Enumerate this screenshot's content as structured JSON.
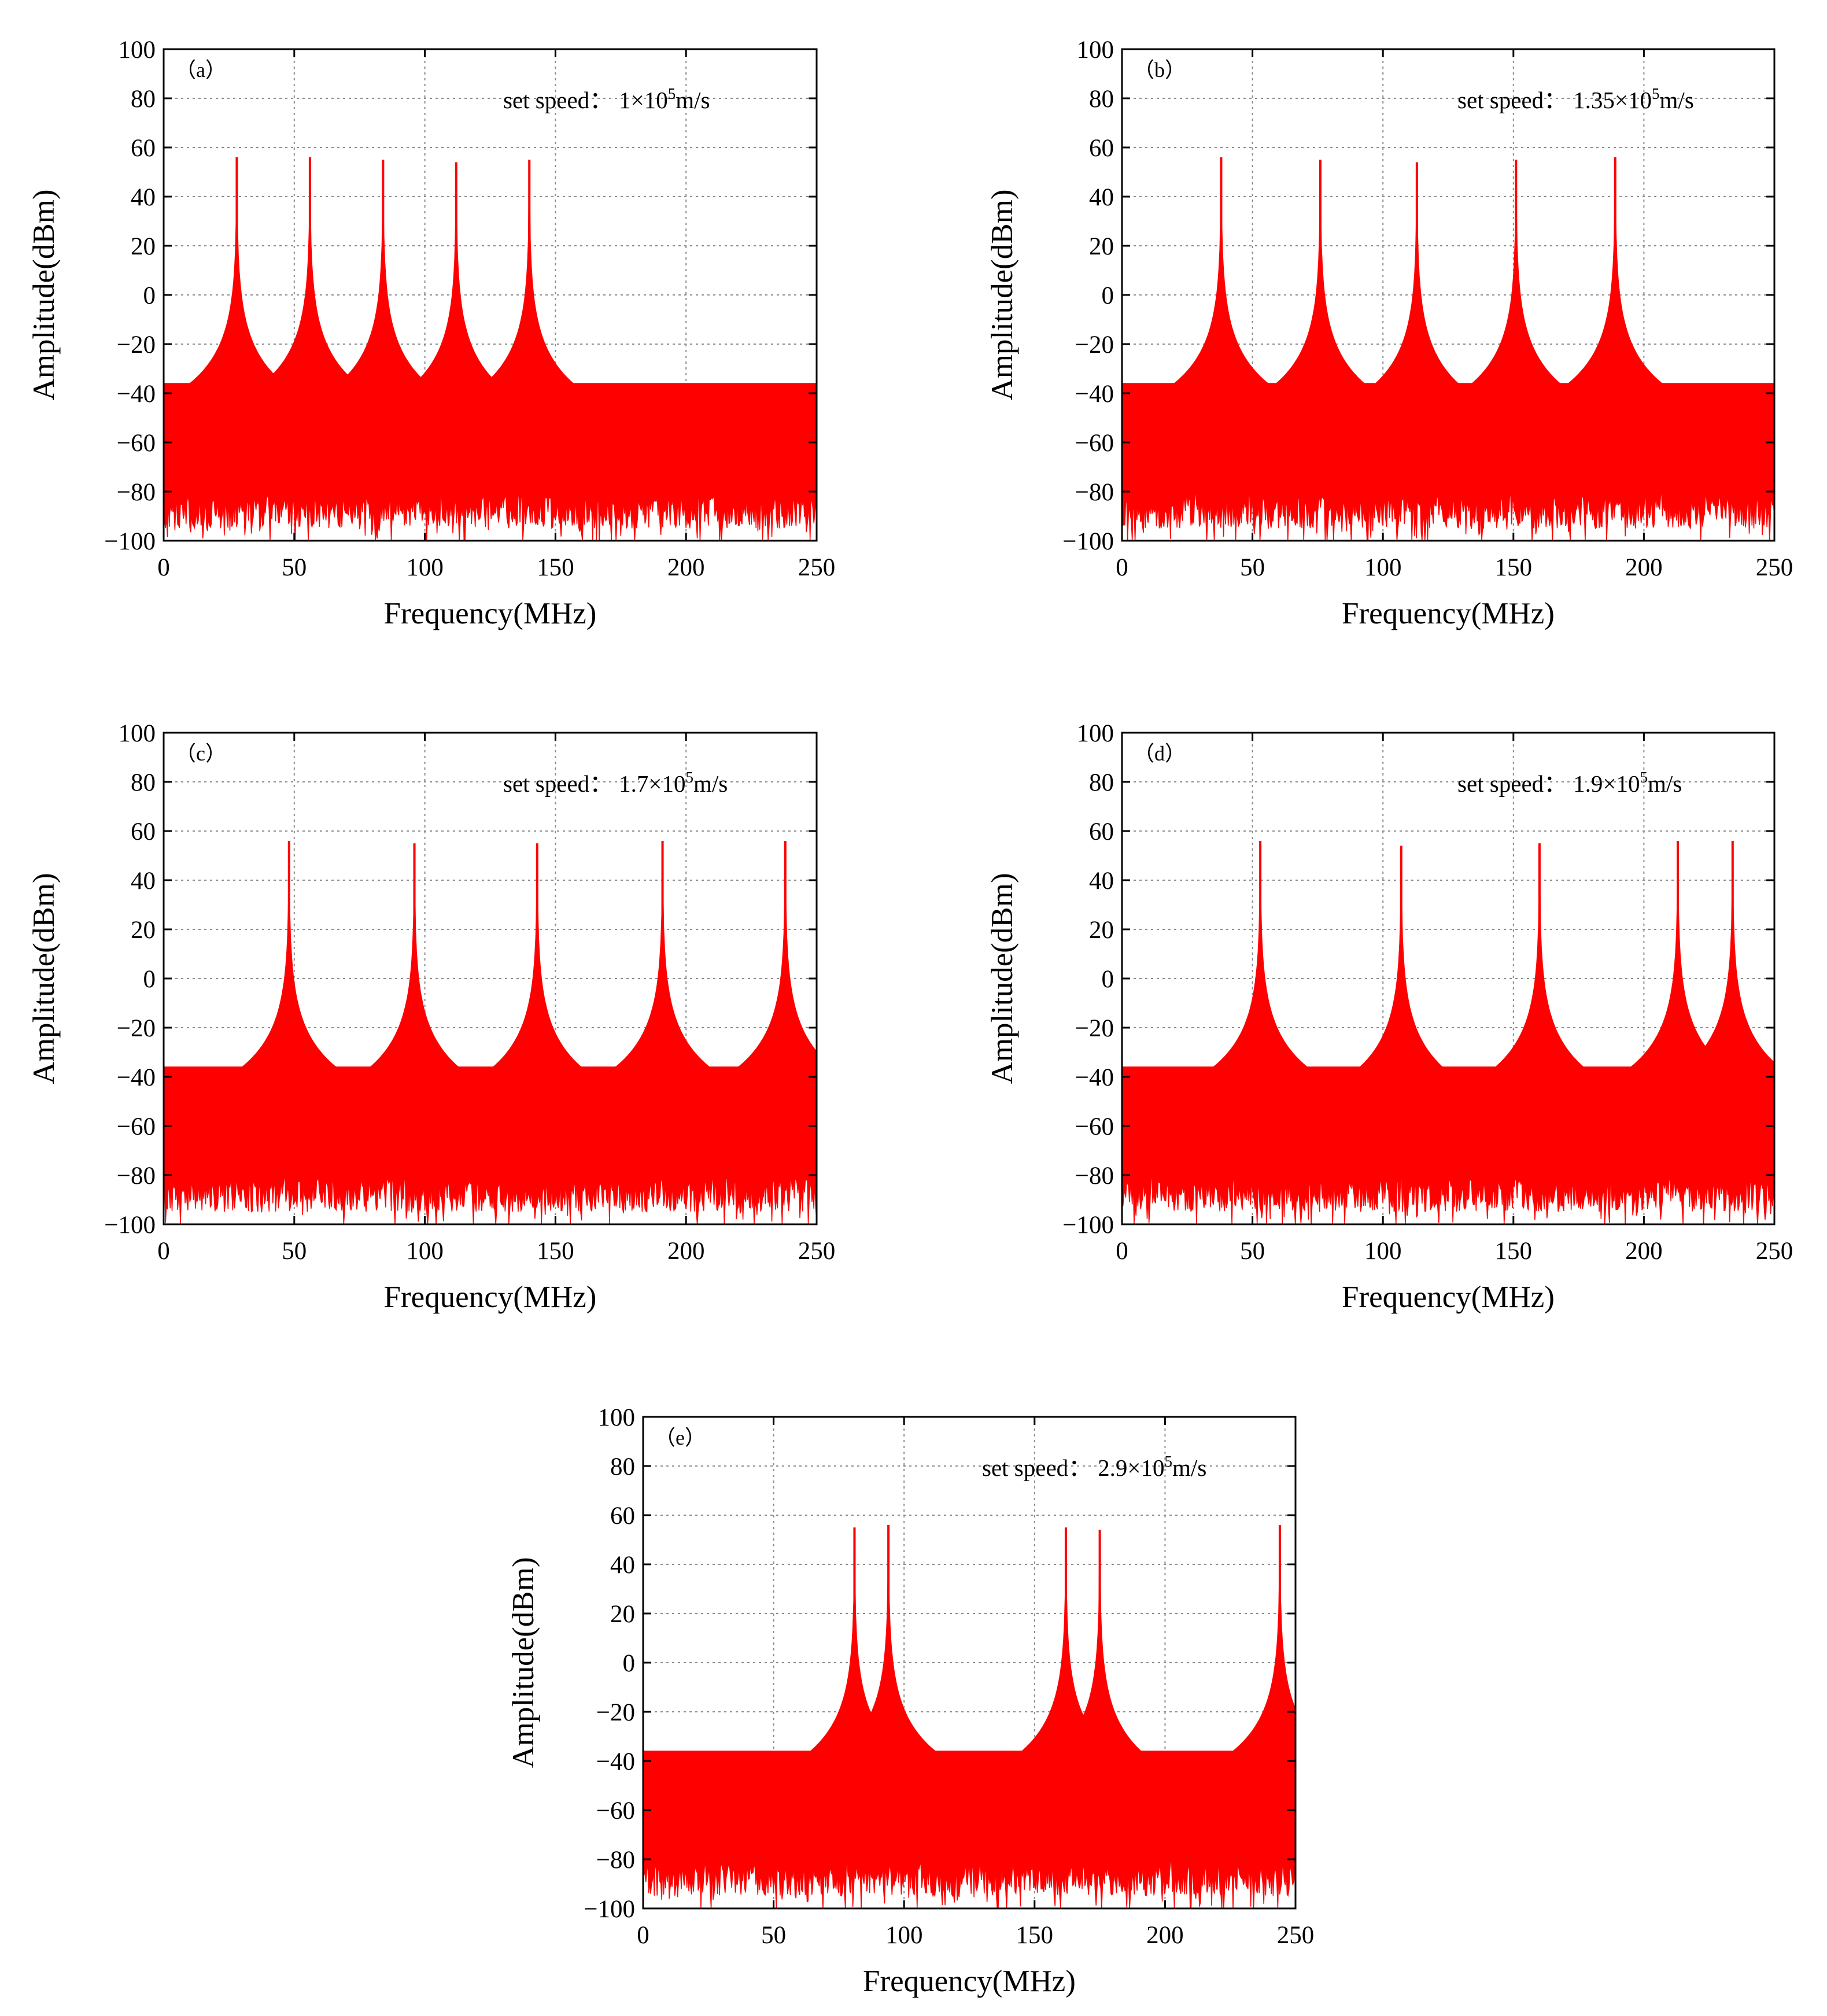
{
  "chart_data": [
    {
      "type": "line",
      "panel_label": "（a）",
      "speed_label": "set speed：",
      "speed_value": "1×10",
      "speed_exp": "5",
      "speed_unit": "m/s",
      "xlabel": "Frequency(MHz)",
      "ylabel": "Amplitude(dBm)",
      "xlim": [
        0,
        250
      ],
      "ylim": [
        -100,
        100
      ],
      "xticks": [
        0,
        50,
        100,
        150,
        200,
        250
      ],
      "yticks": [
        -100,
        -80,
        -60,
        -40,
        -20,
        0,
        20,
        40,
        60,
        80,
        100
      ],
      "grid": true,
      "color": "#ff0000",
      "peaks": [
        {
          "x": 28,
          "y": 56
        },
        {
          "x": 56,
          "y": 56
        },
        {
          "x": 84,
          "y": 55
        },
        {
          "x": 112,
          "y": 54
        },
        {
          "x": 140,
          "y": 55
        }
      ],
      "envelope_floor": -36,
      "noise_floor": -88
    },
    {
      "type": "line",
      "panel_label": "（b）",
      "speed_label": "set speed：",
      "speed_value": "1.35×10",
      "speed_exp": "5",
      "speed_unit": "m/s",
      "xlabel": "Frequency(MHz)",
      "ylabel": "Amplitude(dBm)",
      "xlim": [
        0,
        250
      ],
      "ylim": [
        -100,
        100
      ],
      "xticks": [
        0,
        50,
        100,
        150,
        200,
        250
      ],
      "yticks": [
        -100,
        -80,
        -60,
        -40,
        -20,
        0,
        20,
        40,
        60,
        80,
        100
      ],
      "grid": true,
      "color": "#ff0000",
      "peaks": [
        {
          "x": 38,
          "y": 56
        },
        {
          "x": 76,
          "y": 55
        },
        {
          "x": 113,
          "y": 54
        },
        {
          "x": 151,
          "y": 55
        },
        {
          "x": 189,
          "y": 56
        }
      ],
      "envelope_floor": -36,
      "noise_floor": -88
    },
    {
      "type": "line",
      "panel_label": "（c）",
      "speed_label": "set speed：",
      "speed_value": "1.7×10",
      "speed_exp": "5",
      "speed_unit": "m/s",
      "xlabel": "Frequency(MHz)",
      "ylabel": "Amplitude(dBm)",
      "xlim": [
        0,
        250
      ],
      "ylim": [
        -100,
        100
      ],
      "xticks": [
        0,
        50,
        100,
        150,
        200,
        250
      ],
      "yticks": [
        -100,
        -80,
        -60,
        -40,
        -20,
        0,
        20,
        40,
        60,
        80,
        100
      ],
      "grid": true,
      "color": "#ff0000",
      "peaks": [
        {
          "x": 48,
          "y": 56
        },
        {
          "x": 96,
          "y": 55
        },
        {
          "x": 143,
          "y": 55
        },
        {
          "x": 191,
          "y": 56
        },
        {
          "x": 238,
          "y": 56
        }
      ],
      "envelope_floor": -36,
      "noise_floor": -88
    },
    {
      "type": "line",
      "panel_label": "（d）",
      "speed_label": "set speed：",
      "speed_value": "1.9×10",
      "speed_exp": "5",
      "speed_unit": "m/s",
      "xlabel": "Frequency(MHz)",
      "ylabel": "Amplitude(dBm)",
      "xlim": [
        0,
        250
      ],
      "ylim": [
        -100,
        100
      ],
      "xticks": [
        0,
        50,
        100,
        150,
        200,
        250
      ],
      "yticks": [
        -100,
        -80,
        -60,
        -40,
        -20,
        0,
        20,
        40,
        60,
        80,
        100
      ],
      "grid": true,
      "color": "#ff0000",
      "peaks": [
        {
          "x": 53,
          "y": 56
        },
        {
          "x": 107,
          "y": 54
        },
        {
          "x": 160,
          "y": 55
        },
        {
          "x": 213,
          "y": 56
        },
        {
          "x": 234,
          "y": 56
        }
      ],
      "envelope_floor": -36,
      "noise_floor": -88
    },
    {
      "type": "line",
      "panel_label": "（e）",
      "speed_label": "set speed：",
      "speed_value": "2.9×10",
      "speed_exp": "5",
      "speed_unit": "m/s",
      "xlabel": "Frequency(MHz)",
      "ylabel": "Amplitude(dBm)",
      "xlim": [
        0,
        250
      ],
      "ylim": [
        -100,
        100
      ],
      "xticks": [
        0,
        50,
        100,
        150,
        200,
        250
      ],
      "yticks": [
        -100,
        -80,
        -60,
        -40,
        -20,
        0,
        20,
        40,
        60,
        80,
        100
      ],
      "grid": true,
      "color": "#ff0000",
      "peaks": [
        {
          "x": 81,
          "y": 55
        },
        {
          "x": 94,
          "y": 56
        },
        {
          "x": 162,
          "y": 55
        },
        {
          "x": 175,
          "y": 54
        },
        {
          "x": 244,
          "y": 56
        }
      ],
      "envelope_floor": -36,
      "noise_floor": -88
    }
  ]
}
